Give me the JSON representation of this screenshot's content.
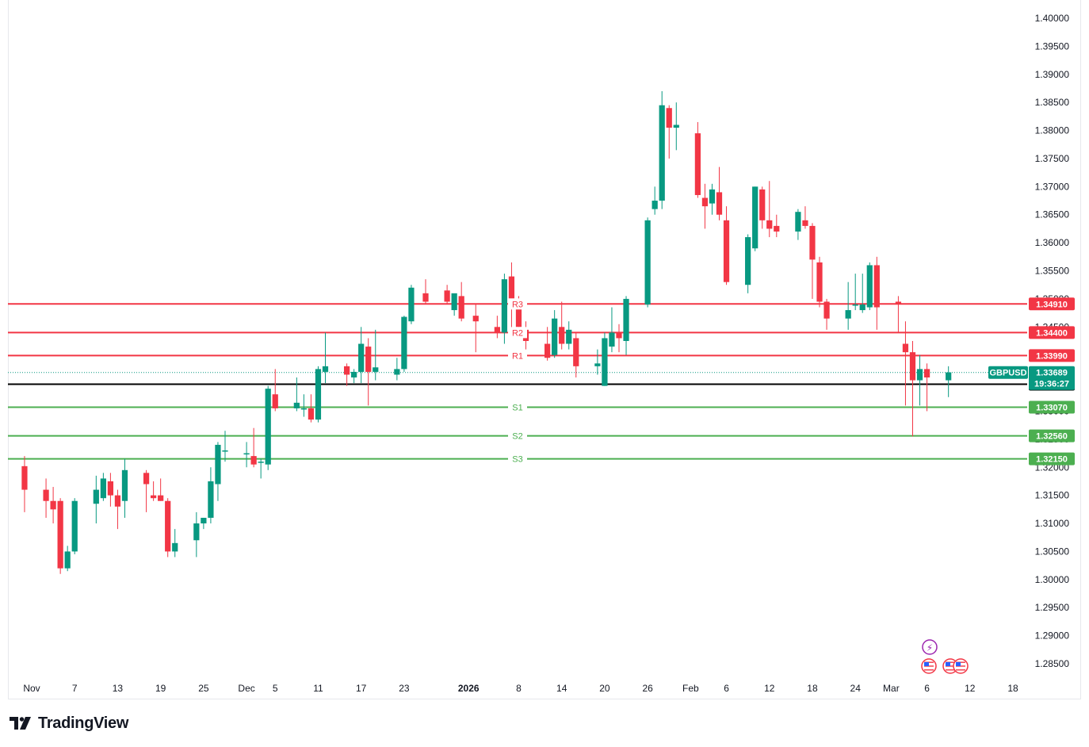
{
  "brand": {
    "name": "TradingView",
    "logo_icon": "tradingview-logo-icon"
  },
  "symbol": {
    "ticker": "GBPUSD",
    "last_price": "1.33689",
    "countdown": "19:36:27"
  },
  "colors": {
    "up": "#089981",
    "down": "#f23645",
    "resistance": "#f23645",
    "support": "#4caf50",
    "pivot": "#000000"
  },
  "chart_data": {
    "type": "candlestick",
    "title": "",
    "xlabel": "",
    "ylabel": "",
    "ylim": [
      1.2815,
      1.4025
    ],
    "y_ticks": [
      "1.40000",
      "1.39500",
      "1.39000",
      "1.38500",
      "1.38000",
      "1.37500",
      "1.37000",
      "1.36500",
      "1.36000",
      "1.35500",
      "1.35000",
      "1.34500",
      "1.34000",
      "1.33500",
      "1.33000",
      "1.32500",
      "1.32000",
      "1.31500",
      "1.31000",
      "1.30500",
      "1.30000",
      "1.29500",
      "1.29000",
      "1.28500"
    ],
    "x_ticks": [
      {
        "label": "Nov",
        "date": "2025-11-01",
        "bold": false
      },
      {
        "label": "7",
        "date": "2025-11-07",
        "bold": false
      },
      {
        "label": "13",
        "date": "2025-11-13",
        "bold": false
      },
      {
        "label": "19",
        "date": "2025-11-19",
        "bold": false
      },
      {
        "label": "25",
        "date": "2025-11-25",
        "bold": false
      },
      {
        "label": "Dec",
        "date": "2025-12-01",
        "bold": false
      },
      {
        "label": "5",
        "date": "2025-12-05",
        "bold": false
      },
      {
        "label": "11",
        "date": "2025-12-11",
        "bold": false
      },
      {
        "label": "17",
        "date": "2025-12-17",
        "bold": false
      },
      {
        "label": "23",
        "date": "2025-12-23",
        "bold": false
      },
      {
        "label": "2026",
        "date": "2026-01-01",
        "bold": true
      },
      {
        "label": "8",
        "date": "2026-01-08",
        "bold": false
      },
      {
        "label": "14",
        "date": "2026-01-14",
        "bold": false
      },
      {
        "label": "20",
        "date": "2026-01-20",
        "bold": false
      },
      {
        "label": "26",
        "date": "2026-01-26",
        "bold": false
      },
      {
        "label": "Feb",
        "date": "2026-02-01",
        "bold": false
      },
      {
        "label": "6",
        "date": "2026-02-06",
        "bold": false
      },
      {
        "label": "12",
        "date": "2026-02-12",
        "bold": false
      },
      {
        "label": "18",
        "date": "2026-02-18",
        "bold": false
      },
      {
        "label": "24",
        "date": "2026-02-24",
        "bold": false
      },
      {
        "label": "Mar",
        "date": "2026-03-01",
        "bold": false
      },
      {
        "label": "6",
        "date": "2026-03-06",
        "bold": false
      },
      {
        "label": "12",
        "date": "2026-03-12",
        "bold": false
      },
      {
        "label": "18",
        "date": "2026-03-18",
        "bold": false
      }
    ],
    "candles": [
      {
        "d": "2025-10-31",
        "o": 1.3202,
        "h": 1.322,
        "l": 1.312,
        "c": 1.316
      },
      {
        "d": "2025-11-03",
        "o": 1.316,
        "h": 1.318,
        "l": 1.311,
        "c": 1.314
      },
      {
        "d": "2025-11-04",
        "o": 1.314,
        "h": 1.3165,
        "l": 1.31,
        "c": 1.3125
      },
      {
        "d": "2025-11-05",
        "o": 1.314,
        "h": 1.3145,
        "l": 1.301,
        "c": 1.302
      },
      {
        "d": "2025-11-06",
        "o": 1.302,
        "h": 1.306,
        "l": 1.3015,
        "c": 1.305
      },
      {
        "d": "2025-11-07",
        "o": 1.305,
        "h": 1.3145,
        "l": 1.3045,
        "c": 1.314
      },
      {
        "d": "2025-11-10",
        "o": 1.3135,
        "h": 1.3185,
        "l": 1.31,
        "c": 1.316
      },
      {
        "d": "2025-11-11",
        "o": 1.3145,
        "h": 1.319,
        "l": 1.314,
        "c": 1.318
      },
      {
        "d": "2025-11-12",
        "o": 1.3175,
        "h": 1.319,
        "l": 1.313,
        "c": 1.315
      },
      {
        "d": "2025-11-13",
        "o": 1.315,
        "h": 1.316,
        "l": 1.309,
        "c": 1.313
      },
      {
        "d": "2025-11-14",
        "o": 1.314,
        "h": 1.3215,
        "l": 1.311,
        "c": 1.3195
      },
      {
        "d": "2025-11-17",
        "o": 1.319,
        "h": 1.3195,
        "l": 1.312,
        "c": 1.317
      },
      {
        "d": "2025-11-18",
        "o": 1.315,
        "h": 1.3175,
        "l": 1.314,
        "c": 1.3145
      },
      {
        "d": "2025-11-19",
        "o": 1.315,
        "h": 1.318,
        "l": 1.314,
        "c": 1.314
      },
      {
        "d": "2025-11-20",
        "o": 1.314,
        "h": 1.3145,
        "l": 1.304,
        "c": 1.305
      },
      {
        "d": "2025-11-21",
        "o": 1.305,
        "h": 1.309,
        "l": 1.304,
        "c": 1.3065
      },
      {
        "d": "2025-11-24",
        "o": 1.307,
        "h": 1.312,
        "l": 1.304,
        "c": 1.31
      },
      {
        "d": "2025-11-25",
        "o": 1.31,
        "h": 1.311,
        "l": 1.309,
        "c": 1.311
      },
      {
        "d": "2025-11-26",
        "o": 1.311,
        "h": 1.32,
        "l": 1.31,
        "c": 1.3175
      },
      {
        "d": "2025-11-27",
        "o": 1.317,
        "h": 1.3245,
        "l": 1.314,
        "c": 1.324
      },
      {
        "d": "2025-11-28",
        "o": 1.323,
        "h": 1.3265,
        "l": 1.321,
        "c": 1.323
      },
      {
        "d": "2025-12-01",
        "o": 1.3225,
        "h": 1.3245,
        "l": 1.32,
        "c": 1.3225
      },
      {
        "d": "2025-12-02",
        "o": 1.322,
        "h": 1.327,
        "l": 1.32,
        "c": 1.3205
      },
      {
        "d": "2025-12-03",
        "o": 1.321,
        "h": 1.3215,
        "l": 1.318,
        "c": 1.321
      },
      {
        "d": "2025-12-04",
        "o": 1.3205,
        "h": 1.3345,
        "l": 1.3195,
        "c": 1.334
      },
      {
        "d": "2025-12-05",
        "o": 1.333,
        "h": 1.3375,
        "l": 1.33,
        "c": 1.3305
      },
      {
        "d": "2025-12-08",
        "o": 1.3305,
        "h": 1.336,
        "l": 1.33,
        "c": 1.3315
      },
      {
        "d": "2025-12-09",
        "o": 1.3305,
        "h": 1.333,
        "l": 1.329,
        "c": 1.3305
      },
      {
        "d": "2025-12-10",
        "o": 1.3305,
        "h": 1.333,
        "l": 1.328,
        "c": 1.3285
      },
      {
        "d": "2025-12-11",
        "o": 1.3285,
        "h": 1.338,
        "l": 1.328,
        "c": 1.3375
      },
      {
        "d": "2025-12-12",
        "o": 1.337,
        "h": 1.344,
        "l": 1.335,
        "c": 1.338
      },
      {
        "d": "2025-12-15",
        "o": 1.338,
        "h": 1.3385,
        "l": 1.3345,
        "c": 1.3365
      },
      {
        "d": "2025-12-16",
        "o": 1.336,
        "h": 1.3375,
        "l": 1.335,
        "c": 1.337
      },
      {
        "d": "2025-12-17",
        "o": 1.337,
        "h": 1.345,
        "l": 1.335,
        "c": 1.342
      },
      {
        "d": "2025-12-18",
        "o": 1.3415,
        "h": 1.343,
        "l": 1.331,
        "c": 1.337
      },
      {
        "d": "2025-12-19",
        "o": 1.337,
        "h": 1.3445,
        "l": 1.3355,
        "c": 1.3378
      },
      {
        "d": "2025-12-22",
        "o": 1.3365,
        "h": 1.3395,
        "l": 1.3355,
        "c": 1.3375
      },
      {
        "d": "2025-12-23",
        "o": 1.3375,
        "h": 1.347,
        "l": 1.337,
        "c": 1.3468
      },
      {
        "d": "2025-12-24",
        "o": 1.346,
        "h": 1.3525,
        "l": 1.3455,
        "c": 1.352
      },
      {
        "d": "2025-12-26",
        "o": 1.351,
        "h": 1.3535,
        "l": 1.349,
        "c": 1.3495
      },
      {
        "d": "2025-12-29",
        "o": 1.3515,
        "h": 1.3525,
        "l": 1.349,
        "c": 1.3495
      },
      {
        "d": "2025-12-30",
        "o": 1.348,
        "h": 1.3505,
        "l": 1.347,
        "c": 1.351
      },
      {
        "d": "2025-12-31",
        "o": 1.3505,
        "h": 1.353,
        "l": 1.346,
        "c": 1.3465
      },
      {
        "d": "2026-01-02",
        "o": 1.347,
        "h": 1.349,
        "l": 1.3405,
        "c": 1.346
      },
      {
        "d": "2026-01-05",
        "o": 1.345,
        "h": 1.347,
        "l": 1.343,
        "c": 1.344
      },
      {
        "d": "2026-01-06",
        "o": 1.344,
        "h": 1.3545,
        "l": 1.342,
        "c": 1.3535
      },
      {
        "d": "2026-01-07",
        "o": 1.354,
        "h": 1.3565,
        "l": 1.344,
        "c": 1.3495
      },
      {
        "d": "2026-01-08",
        "o": 1.3495,
        "h": 1.3505,
        "l": 1.345,
        "c": 1.345
      },
      {
        "d": "2026-01-09",
        "o": 1.3445,
        "h": 1.346,
        "l": 1.341,
        "c": 1.3425
      },
      {
        "d": "2026-01-12",
        "o": 1.342,
        "h": 1.345,
        "l": 1.339,
        "c": 1.3395
      },
      {
        "d": "2026-01-13",
        "o": 1.34,
        "h": 1.348,
        "l": 1.3395,
        "c": 1.3465
      },
      {
        "d": "2026-01-14",
        "o": 1.345,
        "h": 1.3495,
        "l": 1.341,
        "c": 1.342
      },
      {
        "d": "2026-01-15",
        "o": 1.342,
        "h": 1.346,
        "l": 1.341,
        "c": 1.3445
      },
      {
        "d": "2026-01-16",
        "o": 1.343,
        "h": 1.344,
        "l": 1.336,
        "c": 1.338
      },
      {
        "d": "2026-01-19",
        "o": 1.338,
        "h": 1.341,
        "l": 1.3365,
        "c": 1.3385
      },
      {
        "d": "2026-01-20",
        "o": 1.3345,
        "h": 1.344,
        "l": 1.3345,
        "c": 1.343
      },
      {
        "d": "2026-01-21",
        "o": 1.3415,
        "h": 1.3485,
        "l": 1.3405,
        "c": 1.344
      },
      {
        "d": "2026-01-22",
        "o": 1.344,
        "h": 1.3455,
        "l": 1.3405,
        "c": 1.343
      },
      {
        "d": "2026-01-23",
        "o": 1.3425,
        "h": 1.3505,
        "l": 1.34,
        "c": 1.35
      },
      {
        "d": "2026-01-26",
        "o": 1.349,
        "h": 1.3645,
        "l": 1.3485,
        "c": 1.364
      },
      {
        "d": "2026-01-27",
        "o": 1.366,
        "h": 1.37,
        "l": 1.365,
        "c": 1.3675
      },
      {
        "d": "2026-01-28",
        "o": 1.3675,
        "h": 1.387,
        "l": 1.366,
        "c": 1.3845
      },
      {
        "d": "2026-01-29",
        "o": 1.384,
        "h": 1.3845,
        "l": 1.375,
        "c": 1.3805
      },
      {
        "d": "2026-01-30",
        "o": 1.3805,
        "h": 1.385,
        "l": 1.3765,
        "c": 1.381
      },
      {
        "d": "2026-02-02",
        "o": 1.3795,
        "h": 1.3815,
        "l": 1.368,
        "c": 1.3685
      },
      {
        "d": "2026-02-03",
        "o": 1.368,
        "h": 1.3705,
        "l": 1.3625,
        "c": 1.3665
      },
      {
        "d": "2026-02-04",
        "o": 1.367,
        "h": 1.3705,
        "l": 1.365,
        "c": 1.3695
      },
      {
        "d": "2026-02-05",
        "o": 1.369,
        "h": 1.3735,
        "l": 1.364,
        "c": 1.365
      },
      {
        "d": "2026-02-06",
        "o": 1.364,
        "h": 1.3665,
        "l": 1.3525,
        "c": 1.353
      },
      {
        "d": "2026-02-09",
        "o": 1.3525,
        "h": 1.3615,
        "l": 1.351,
        "c": 1.361
      },
      {
        "d": "2026-02-10",
        "o": 1.359,
        "h": 1.37,
        "l": 1.3585,
        "c": 1.37
      },
      {
        "d": "2026-02-11",
        "o": 1.3695,
        "h": 1.37,
        "l": 1.3625,
        "c": 1.364
      },
      {
        "d": "2026-02-12",
        "o": 1.364,
        "h": 1.371,
        "l": 1.361,
        "c": 1.3625
      },
      {
        "d": "2026-02-13",
        "o": 1.363,
        "h": 1.365,
        "l": 1.361,
        "c": 1.362
      },
      {
        "d": "2026-02-16",
        "o": 1.362,
        "h": 1.366,
        "l": 1.3605,
        "c": 1.3655
      },
      {
        "d": "2026-02-17",
        "o": 1.364,
        "h": 1.3665,
        "l": 1.3625,
        "c": 1.363
      },
      {
        "d": "2026-02-18",
        "o": 1.363,
        "h": 1.3635,
        "l": 1.35,
        "c": 1.357
      },
      {
        "d": "2026-02-19",
        "o": 1.3565,
        "h": 1.3575,
        "l": 1.3485,
        "c": 1.3495
      },
      {
        "d": "2026-02-20",
        "o": 1.3495,
        "h": 1.35,
        "l": 1.3445,
        "c": 1.3465
      },
      {
        "d": "2026-02-23",
        "o": 1.3465,
        "h": 1.353,
        "l": 1.3445,
        "c": 1.348
      },
      {
        "d": "2026-02-24",
        "o": 1.349,
        "h": 1.3545,
        "l": 1.348,
        "c": 1.349
      },
      {
        "d": "2026-02-25",
        "o": 1.348,
        "h": 1.3545,
        "l": 1.3475,
        "c": 1.349
      },
      {
        "d": "2026-02-26",
        "o": 1.3485,
        "h": 1.3565,
        "l": 1.348,
        "c": 1.356
      },
      {
        "d": "2026-02-27",
        "o": 1.356,
        "h": 1.3575,
        "l": 1.3445,
        "c": 1.3485
      },
      {
        "d": "2026-03-02",
        "o": 1.3495,
        "h": 1.3505,
        "l": 1.344,
        "c": 1.349
      },
      {
        "d": "2026-03-03",
        "o": 1.342,
        "h": 1.346,
        "l": 1.331,
        "c": 1.3405
      },
      {
        "d": "2026-03-04",
        "o": 1.3405,
        "h": 1.3425,
        "l": 1.3255,
        "c": 1.3355
      },
      {
        "d": "2026-03-05",
        "o": 1.3355,
        "h": 1.34,
        "l": 1.331,
        "c": 1.3375
      },
      {
        "d": "2026-03-06",
        "o": 1.3375,
        "h": 1.3385,
        "l": 1.33,
        "c": 1.336
      },
      {
        "d": "2026-03-09",
        "o": 1.3355,
        "h": 1.338,
        "l": 1.3325,
        "c": 1.3369
      }
    ],
    "levels": [
      {
        "name": "R3",
        "value": 1.3491,
        "label": "1.34910",
        "type": "resistance"
      },
      {
        "name": "R2",
        "value": 1.344,
        "label": "1.34400",
        "type": "resistance"
      },
      {
        "name": "R1",
        "value": 1.3399,
        "label": "1.33990",
        "type": "resistance"
      },
      {
        "name": "",
        "value": 1.3348,
        "label": "1.33480",
        "type": "pivot"
      },
      {
        "name": "S1",
        "value": 1.3307,
        "label": "1.33070",
        "type": "support"
      },
      {
        "name": "S2",
        "value": 1.3256,
        "label": "1.32560",
        "type": "support"
      },
      {
        "name": "S3",
        "value": 1.3215,
        "label": "1.32150",
        "type": "support"
      }
    ],
    "last_price_value": 1.33689,
    "grid": false,
    "legend": "none"
  },
  "event_icons": [
    {
      "name": "lightning-event-icon",
      "symbol": "⚡"
    },
    {
      "name": "us-flag-event-icon",
      "symbol": ""
    },
    {
      "name": "us-flag-event-icon",
      "symbol": ""
    }
  ]
}
